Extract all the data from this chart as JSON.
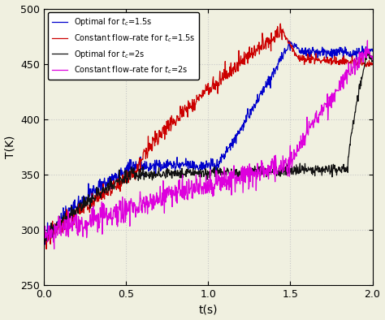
{
  "xlim": [
    0,
    2
  ],
  "ylim": [
    250,
    500
  ],
  "xlabel": "t(s)",
  "ylabel": "T(K)",
  "xticks": [
    0,
    0.5,
    1.0,
    1.5,
    2.0
  ],
  "yticks": [
    250,
    300,
    350,
    400,
    450,
    500
  ],
  "grid_color": "#c8c8c8",
  "background_color": "#f0f0e0",
  "legend_entries": [
    "Optimal for $t_c$=1.5s",
    "Constant flow–rate for $t_c$=1.5s",
    "Optimal for $t_c$=2s",
    "Constant flow–rate for $t_c$=2s"
  ],
  "line_colors": [
    "#0000cc",
    "#cc0000",
    "#111111",
    "#dd00dd"
  ],
  "noise_seed": 12
}
